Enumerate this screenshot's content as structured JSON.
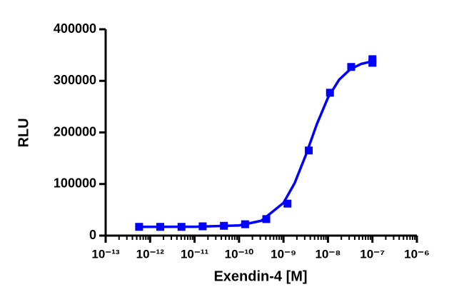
{
  "chart_data": {
    "type": "scatter",
    "xlabel": "Exendin-4 [M]",
    "ylabel": "RLU",
    "xscale": "log",
    "color": "#0000ff",
    "xlim": [
      1e-13,
      1e-06
    ],
    "ylim": [
      0,
      400000
    ],
    "xticks": [
      {
        "value": 1e-13,
        "label": "10⁻¹³"
      },
      {
        "value": 1e-12,
        "label": "10⁻¹²"
      },
      {
        "value": 1e-11,
        "label": "10⁻¹¹"
      },
      {
        "value": 1e-10,
        "label": "10⁻¹⁰"
      },
      {
        "value": 1e-09,
        "label": "10⁻⁹"
      },
      {
        "value": 1e-08,
        "label": "10⁻⁸"
      },
      {
        "value": 1e-07,
        "label": "10⁻⁷"
      },
      {
        "value": 1e-06,
        "label": "10⁻⁶"
      }
    ],
    "xminorticks": [
      2e-13,
      3e-13,
      4e-13,
      5e-13,
      6e-13,
      7e-13,
      8e-13,
      9e-13,
      2e-12,
      3e-12,
      4e-12,
      5e-12,
      6e-12,
      7e-12,
      8e-12,
      9e-12,
      2e-11,
      3e-11,
      4e-11,
      5e-11,
      6e-11,
      7e-11,
      8e-11,
      9e-11,
      2e-10,
      3e-10,
      4e-10,
      5e-10,
      6e-10,
      7e-10,
      8e-10,
      9e-10,
      2e-09,
      3e-09,
      4e-09,
      5e-09,
      6e-09,
      7e-09,
      8e-09,
      9e-09,
      2e-08,
      3e-08,
      4e-08,
      5e-08,
      6e-08,
      7e-08,
      8e-08,
      9e-08,
      2e-07,
      3e-07,
      4e-07,
      5e-07,
      6e-07,
      7e-07,
      8e-07,
      9e-07
    ],
    "yticks": [
      0,
      100000,
      200000,
      300000,
      400000
    ],
    "x": [
      5.65e-13,
      1.69e-12,
      5.08e-12,
      1.52e-11,
      4.57e-11,
      1.37e-10,
      4.1e-10,
      1.23e-09,
      3.7e-09,
      1.11e-08,
      3.33e-08,
      1e-07,
      1e-07
    ],
    "values": [
      17000,
      17000,
      17000,
      18000,
      19000,
      22000,
      32000,
      62000,
      165000,
      277000,
      327000,
      342000,
      335000
    ],
    "curve": {
      "x": [
        5.6e-13,
        1e-11,
        1e-10,
        3.16e-10,
        1e-09,
        1.78e-09,
        3.16e-09,
        5.62e-09,
        1e-08,
        1.78e-08,
        3.16e-08,
        5.62e-08,
        1e-07
      ],
      "values": [
        17000,
        17100,
        19700,
        28700,
        63400,
        101700,
        155700,
        216000,
        267400,
        302200,
        322400,
        332900,
        338000
      ]
    }
  }
}
